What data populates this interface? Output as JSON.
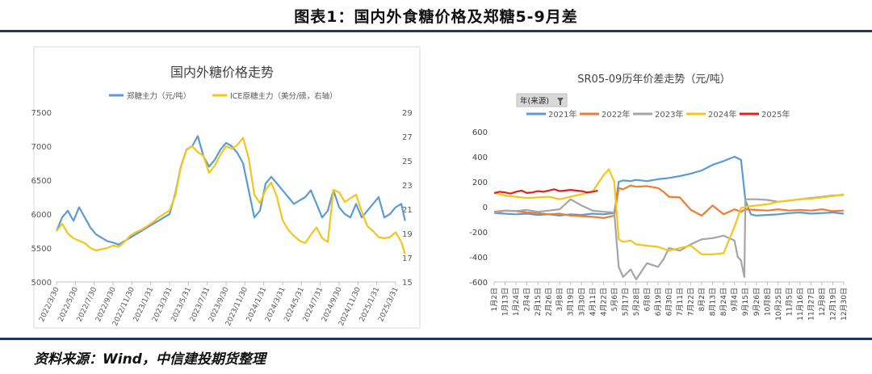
{
  "figure_title": "图表1：国内外食糖价格及郑糖5-9月差",
  "source": "资料来源：Wind，中信建投期货整理",
  "chart_data": [
    {
      "type": "line",
      "title": "国内外糖价格走势",
      "legend": [
        "郑糖主力（元/吨）",
        "ICE原糖主力（美分/磅，右轴）"
      ],
      "y_left": {
        "ticks": [
          "5000",
          "5500",
          "6000",
          "6500",
          "7000",
          "7500"
        ],
        "range": [
          5000,
          7500
        ]
      },
      "y_right": {
        "ticks": [
          "15",
          "17",
          "19",
          "21",
          "23",
          "25",
          "27",
          "29"
        ],
        "range": [
          15,
          29
        ]
      },
      "x_ticks": [
        "2022/3/30",
        "2022/5/30",
        "2022/7/30",
        "2022/9/30",
        "2022/11/30",
        "2023/1/31",
        "2023/3/31",
        "2023/5/31",
        "2023/7/31",
        "2023/9/30",
        "2023/11/30",
        "2024/1/31",
        "2024/3/31",
        "2024/5/31",
        "2024/7/31",
        "2024/9/30",
        "2024/11/30",
        "2025/1/31",
        "2025/3/31"
      ],
      "series": [
        {
          "name": "郑糖主力（元/吨）",
          "axis": "left",
          "color": "#5b9bd5",
          "x": [
            0,
            0.3,
            0.6,
            0.9,
            1.2,
            1.5,
            1.8,
            2.1,
            2.4,
            2.7,
            3,
            3.3,
            3.6,
            3.9,
            4.2,
            4.5,
            4.8,
            5.1,
            5.4,
            5.7,
            6,
            6.3,
            6.6,
            6.9,
            7.2,
            7.5,
            7.8,
            8.1,
            8.4,
            8.7,
            9,
            9.3,
            9.6,
            9.9,
            10.2,
            10.5,
            10.8,
            11.1,
            11.4,
            11.7,
            12,
            12.3,
            12.6,
            12.9,
            13.2,
            13.5,
            13.8,
            14.1,
            14.4,
            14.7,
            15,
            15.3,
            15.6,
            15.9,
            16.2,
            16.5,
            16.8,
            17.1,
            17.4,
            17.7,
            18,
            18.3,
            18.5
          ],
          "y": [
            5750,
            5950,
            6050,
            5900,
            6100,
            5950,
            5800,
            5700,
            5650,
            5600,
            5580,
            5550,
            5600,
            5650,
            5700,
            5750,
            5800,
            5850,
            5900,
            5950,
            6000,
            6300,
            6700,
            6950,
            7000,
            7150,
            6850,
            6700,
            6800,
            6950,
            7050,
            7000,
            6900,
            6750,
            6350,
            5950,
            6050,
            6450,
            6550,
            6450,
            6350,
            6250,
            6150,
            6200,
            6250,
            6350,
            6150,
            5950,
            6050,
            6350,
            6100,
            6000,
            5950,
            6150,
            5950,
            6050,
            6150,
            6250,
            5950,
            6000,
            6100,
            6150,
            5900
          ]
        },
        {
          "name": "ICE原糖主力（美分/磅，右轴）",
          "axis": "right",
          "color": "#f5c518",
          "x": [
            0,
            0.3,
            0.6,
            0.9,
            1.2,
            1.5,
            1.8,
            2.1,
            2.4,
            2.7,
            3,
            3.3,
            3.6,
            3.9,
            4.2,
            4.5,
            4.8,
            5.1,
            5.4,
            5.7,
            6,
            6.3,
            6.6,
            6.9,
            7.2,
            7.5,
            7.8,
            8.1,
            8.4,
            8.7,
            9,
            9.3,
            9.6,
            9.9,
            10.2,
            10.5,
            10.8,
            11.1,
            11.4,
            11.7,
            12,
            12.3,
            12.6,
            12.9,
            13.2,
            13.5,
            13.8,
            14.1,
            14.4,
            14.7,
            15,
            15.3,
            15.6,
            15.9,
            16.2,
            16.5,
            16.8,
            17.1,
            17.4,
            17.7,
            18,
            18.3,
            18.5
          ],
          "y": [
            19.2,
            19.8,
            19.0,
            18.6,
            18.4,
            18.2,
            17.8,
            17.6,
            17.7,
            17.8,
            18.0,
            17.9,
            18.3,
            18.8,
            19.1,
            19.3,
            19.6,
            19.9,
            20.3,
            20.6,
            20.9,
            22.1,
            24.5,
            25.9,
            26.2,
            25.7,
            25.4,
            24.0,
            24.6,
            25.5,
            26.2,
            26.0,
            26.3,
            26.9,
            25.2,
            22.2,
            21.5,
            22.6,
            23.2,
            22.0,
            20.1,
            19.3,
            18.8,
            18.4,
            18.2,
            18.9,
            19.5,
            18.6,
            18.3,
            22.6,
            22.4,
            21.6,
            21.9,
            22.2,
            20.8,
            19.6,
            19.2,
            18.7,
            18.6,
            18.7,
            19.1,
            18.3,
            17.3
          ]
        }
      ]
    },
    {
      "type": "line",
      "title": "SR05-09历年价差走势（元/吨）",
      "filter_label": "年(来源)",
      "legend": [
        "2021年",
        "2022年",
        "2023年",
        "2024年",
        "2025年"
      ],
      "y_ticks": [
        "600",
        "400",
        "200",
        "0",
        "-200",
        "-400",
        "-600"
      ],
      "y_range": [
        -600,
        600
      ],
      "x_ticks": [
        "1月2日",
        "1月13日",
        "1月24日",
        "2月4日",
        "2月15日",
        "2月26日",
        "3月8日",
        "3月19日",
        "3月30日",
        "4月11日",
        "4月22日",
        "5月6日",
        "5月17日",
        "5月28日",
        "6月8日",
        "6月19日",
        "6月30日",
        "7月11日",
        "7月22日",
        "8月2日",
        "8月13日",
        "8月24日",
        "9月4日",
        "9月15日",
        "9月26日",
        "10月8日",
        "10月25日",
        "11月5日",
        "11月16日",
        "11月27日",
        "12月8日",
        "12月19日",
        "12月30日"
      ],
      "series": [
        {
          "name": "2021年",
          "color": "#5b9bd5",
          "x": [
            0,
            1,
            2,
            3,
            4,
            5,
            6,
            7,
            8,
            9,
            10,
            11,
            11.4,
            11.8,
            12.5,
            13,
            14,
            15,
            16,
            17,
            18,
            19,
            20,
            21,
            22,
            22.6,
            23,
            23.5,
            24,
            25,
            26,
            27,
            28,
            29,
            30,
            31,
            32
          ],
          "y": [
            -50,
            -55,
            -60,
            -55,
            -65,
            -60,
            -70,
            -60,
            -65,
            -55,
            -60,
            -50,
            200,
            210,
            205,
            215,
            205,
            220,
            230,
            245,
            265,
            290,
            335,
            365,
            400,
            375,
            50,
            -60,
            -70,
            -65,
            -60,
            -50,
            -45,
            -55,
            -50,
            -45,
            -55
          ]
        },
        {
          "name": "2022年",
          "color": "#ed7d31",
          "x": [
            0,
            1,
            2,
            3,
            4,
            5,
            6,
            7,
            8,
            9,
            10,
            11,
            11.4,
            11.8,
            12.5,
            13,
            14,
            15,
            15.5,
            16,
            17,
            18,
            19,
            20,
            21,
            22,
            22.6,
            23,
            24,
            25,
            26,
            27,
            28,
            29,
            30,
            31,
            32
          ],
          "y": [
            -40,
            -30,
            -35,
            -45,
            -50,
            -60,
            -55,
            -70,
            -75,
            -80,
            -90,
            -70,
            150,
            140,
            170,
            160,
            165,
            150,
            120,
            80,
            75,
            -25,
            -70,
            10,
            -60,
            -20,
            -40,
            -20,
            -25,
            -30,
            -20,
            -30,
            -25,
            -30,
            -20,
            -35,
            -30
          ]
        },
        {
          "name": "2023年",
          "color": "#a5a5a5",
          "x": [
            0,
            1,
            2,
            3,
            4,
            5,
            6,
            7,
            8,
            9,
            10,
            11,
            11.4,
            11.8,
            12.5,
            13,
            14,
            15,
            15.5,
            16,
            17,
            18,
            19,
            20,
            21,
            22,
            22.3,
            22.6,
            22.9,
            23,
            24,
            25,
            26,
            27,
            28,
            29,
            30,
            31,
            32
          ],
          "y": [
            -50,
            -30,
            -35,
            -25,
            -40,
            -30,
            -20,
            60,
            10,
            -30,
            -40,
            -45,
            -480,
            -560,
            -500,
            -580,
            -450,
            -480,
            -420,
            -330,
            -350,
            -300,
            -260,
            -250,
            -230,
            -270,
            -400,
            -430,
            -560,
            60,
            60,
            55,
            40,
            50,
            60,
            70,
            80,
            90,
            95
          ]
        },
        {
          "name": "2024年",
          "color": "#f5c518",
          "x": [
            0,
            1,
            2,
            3,
            4,
            5,
            6,
            7,
            8,
            9,
            10,
            10.5,
            11,
            11.4,
            11.8,
            12.5,
            13,
            14,
            15,
            16,
            17,
            18,
            19,
            20,
            21,
            22,
            22.6,
            23,
            24,
            25,
            26,
            27,
            28,
            29,
            30,
            31,
            32
          ],
          "y": [
            110,
            90,
            80,
            70,
            75,
            80,
            60,
            80,
            100,
            120,
            250,
            300,
            200,
            -260,
            -280,
            -270,
            -300,
            -310,
            -320,
            -350,
            -330,
            -310,
            -380,
            -380,
            -370,
            -160,
            -10,
            0,
            10,
            20,
            40,
            50,
            60,
            65,
            75,
            85,
            100
          ]
        },
        {
          "name": "2025年",
          "color": "#e32020",
          "x": [
            0,
            0.5,
            1,
            1.5,
            2,
            2.5,
            3,
            3.5,
            4,
            4.5,
            5,
            5.5,
            6,
            6.5,
            7,
            7.5,
            8,
            8.5,
            9,
            9.5
          ],
          "y": [
            110,
            120,
            115,
            105,
            120,
            130,
            110,
            115,
            125,
            120,
            130,
            140,
            125,
            130,
            135,
            130,
            125,
            115,
            120,
            130
          ]
        }
      ]
    }
  ]
}
